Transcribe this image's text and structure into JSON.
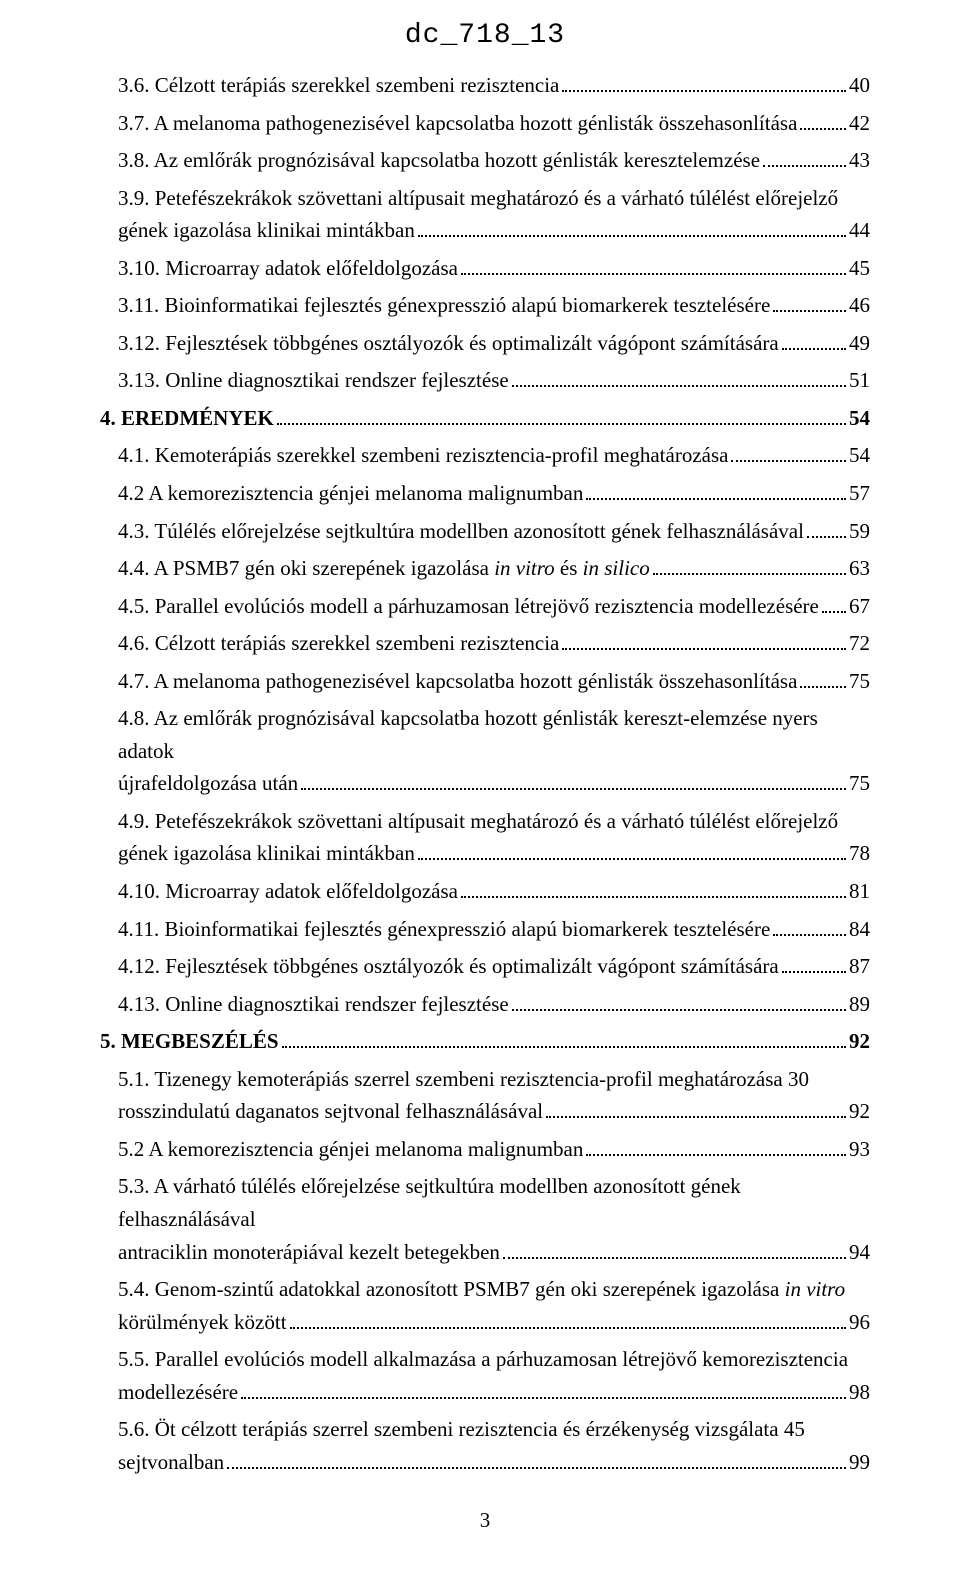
{
  "header": {
    "doc_code": "dc_718_13"
  },
  "page_number": "3",
  "colors": {
    "text": "#000000",
    "background": "#ffffff",
    "leader": "#000000"
  },
  "typography": {
    "body_font": "Times New Roman",
    "header_font": "Courier New",
    "body_fontsize_pt": 16,
    "header_fontsize_pt": 21
  },
  "toc": [
    {
      "level": 2,
      "text": "3.6. Célzott terápiás szerekkel szembeni rezisztencia",
      "page": "40"
    },
    {
      "level": 2,
      "text": "3.7. A melanoma pathogenezisével kapcsolatba hozott génlisták összehasonlítása",
      "page": "42"
    },
    {
      "level": 2,
      "text": "3.8. Az emlőrák prognózisával kapcsolatba hozott génlisták keresztelemzése",
      "page": "43"
    },
    {
      "level": 2,
      "multiline": true,
      "first": "3.9. Petefészekrákok szövettani altípusait meghatározó és a várható túlélést előrejelző",
      "tail": "gének igazolása klinikai mintákban",
      "page": "44"
    },
    {
      "level": 2,
      "text": "3.10. Microarray adatok előfeldolgozása",
      "page": "45"
    },
    {
      "level": 2,
      "text": "3.11. Bioinformatikai fejlesztés génexpresszió alapú biomarkerek tesztelésére",
      "page": "46"
    },
    {
      "level": 2,
      "text": "3.12. Fejlesztések többgénes osztályozók és optimalizált vágópont számítására",
      "page": "49"
    },
    {
      "level": 2,
      "text": "3.13. Online diagnosztikai rendszer fejlesztése",
      "page": "51"
    },
    {
      "level": 1,
      "bold": true,
      "text": "4. EREDMÉNYEK",
      "page": "54"
    },
    {
      "level": 2,
      "text": "4.1. Kemoterápiás szerekkel szembeni rezisztencia-profil meghatározása",
      "page": "54"
    },
    {
      "level": 2,
      "text": "4.2 A kemorezisztencia génjei melanoma malignumban",
      "page": "57"
    },
    {
      "level": 2,
      "text": "4.3. Túlélés előrejelzése sejtkultúra modellben azonosított gének felhasználásával",
      "page": "59"
    },
    {
      "level": 2,
      "text_html": "4.4. A PSMB7 gén oki szerepének igazolása <i>in vitro</i> és <i>in silico</i>",
      "page": "63"
    },
    {
      "level": 2,
      "text": "4.5. Parallel evolúciós modell a párhuzamosan létrejövő rezisztencia modellezésére",
      "page": "67"
    },
    {
      "level": 2,
      "text": "4.6. Célzott terápiás szerekkel szembeni rezisztencia",
      "page": "72"
    },
    {
      "level": 2,
      "text": "4.7. A melanoma pathogenezisével kapcsolatba hozott génlisták összehasonlítása",
      "page": "75"
    },
    {
      "level": 2,
      "multiline": true,
      "first": "4.8. Az emlőrák prognózisával kapcsolatba hozott génlisták kereszt-elemzése nyers adatok",
      "tail": "újrafeldolgozása után",
      "page": "75"
    },
    {
      "level": 2,
      "multiline": true,
      "first": "4.9. Petefészekrákok szövettani altípusait meghatározó és a várható túlélést előrejelző",
      "tail": "gének igazolása klinikai mintákban",
      "page": "78"
    },
    {
      "level": 2,
      "text": "4.10. Microarray adatok előfeldolgozása",
      "page": "81"
    },
    {
      "level": 2,
      "text": "4.11. Bioinformatikai fejlesztés génexpresszió alapú biomarkerek tesztelésére",
      "page": "84"
    },
    {
      "level": 2,
      "text": "4.12. Fejlesztések többgénes osztályozók és optimalizált vágópont számítására",
      "page": "87"
    },
    {
      "level": 2,
      "text": "4.13. Online diagnosztikai rendszer fejlesztése",
      "page": "89"
    },
    {
      "level": 1,
      "bold": true,
      "text": "5. MEGBESZÉLÉS",
      "page": "92"
    },
    {
      "level": 2,
      "multiline": true,
      "first": "5.1. Tizenegy kemoterápiás szerrel szembeni rezisztencia-profil meghatározása 30",
      "tail": "rosszindulatú daganatos sejtvonal felhasználásával",
      "page": "92"
    },
    {
      "level": 2,
      "text": "5.2 A kemorezisztencia génjei melanoma malignumban",
      "page": "93"
    },
    {
      "level": 2,
      "multiline": true,
      "first": "5.3. A várható túlélés előrejelzése sejtkultúra modellben azonosított gének felhasználásával",
      "tail": "antraciklin monoterápiával kezelt betegekben",
      "page": "94"
    },
    {
      "level": 2,
      "multiline": true,
      "first_html": "5.4. Genom-szintű adatokkal azonosított PSMB7 gén oki szerepének igazolása <i>in vitro</i>",
      "tail": "körülmények között",
      "page": "96"
    },
    {
      "level": 2,
      "multiline": true,
      "first": "5.5. Parallel evolúciós modell alkalmazása a párhuzamosan létrejövő kemorezisztencia",
      "tail": "modellezésére",
      "page": "98"
    },
    {
      "level": 2,
      "multiline": true,
      "first": "5.6. Öt célzott terápiás szerrel szembeni rezisztencia és érzékenység vizsgálata 45",
      "tail": "sejtvonalban",
      "page": "99"
    }
  ]
}
